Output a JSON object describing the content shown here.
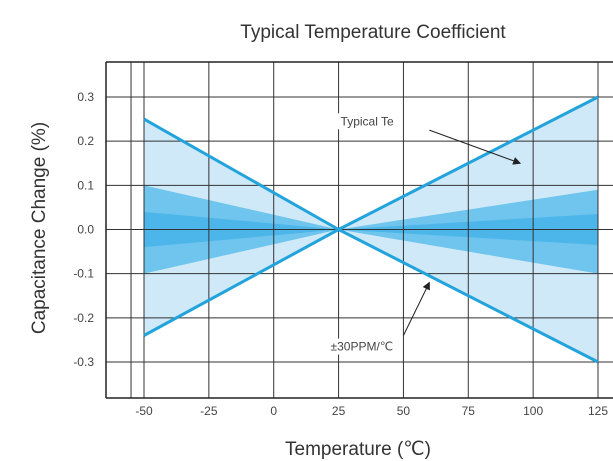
{
  "chart_data": {
    "type": "line",
    "title": "Typical Temperature Coefficient",
    "xlabel": "Temperature (℃)",
    "ylabel": "Capacitance Change (%)",
    "xlim": [
      -55,
      125
    ],
    "ylim": [
      -0.35,
      0.35
    ],
    "x_ticks": [
      -50,
      -25,
      0,
      25,
      50,
      75,
      100,
      125
    ],
    "x_tick_labels": [
      "-50",
      "-25",
      "0",
      "25",
      "50",
      "75",
      "100",
      "125"
    ],
    "y_ticks": [
      0.3,
      0.2,
      0.1,
      0.0,
      -0.1,
      -0.2,
      -0.3
    ],
    "y_tick_labels": [
      "0.3",
      "0.2",
      "0.1",
      "0.0",
      "-0.1",
      "-0.2",
      "-0.3"
    ],
    "grid": true,
    "bands": [
      {
        "x": [
          -50,
          25,
          125
        ],
        "upper": [
          0.25,
          0.0,
          0.3
        ],
        "lower": [
          -0.24,
          0.0,
          -0.3
        ],
        "color": "#cfe9f8"
      },
      {
        "x": [
          -50,
          25,
          125
        ],
        "upper": [
          0.1,
          0.0,
          0.09
        ],
        "lower": [
          -0.1,
          0.0,
          -0.1
        ],
        "color": "#6fc5ee"
      },
      {
        "x": [
          -50,
          25,
          125
        ],
        "upper": [
          0.04,
          0.0,
          0.035
        ],
        "lower": [
          -0.04,
          0.0,
          -0.035
        ],
        "color": "#4cb6ea"
      }
    ],
    "series": [
      {
        "x": [
          -50,
          25,
          125
        ],
        "y": [
          0.25,
          0.0,
          -0.3
        ],
        "color": "#22a3dc"
      },
      {
        "x": [
          -50,
          25,
          125
        ],
        "y": [
          -0.24,
          0.0,
          0.3
        ],
        "color": "#22a3dc"
      }
    ],
    "annotations": [
      {
        "text": "Typical Te",
        "text_at": [
          36,
          0.245
        ],
        "arrow_from": [
          60,
          0.225
        ],
        "arrow_to": [
          95,
          0.15
        ]
      },
      {
        "text": "±30PPM/℃",
        "text_at": [
          34,
          -0.265
        ],
        "arrow_from": [
          50,
          -0.24
        ],
        "arrow_to": [
          60,
          -0.12
        ]
      }
    ]
  }
}
